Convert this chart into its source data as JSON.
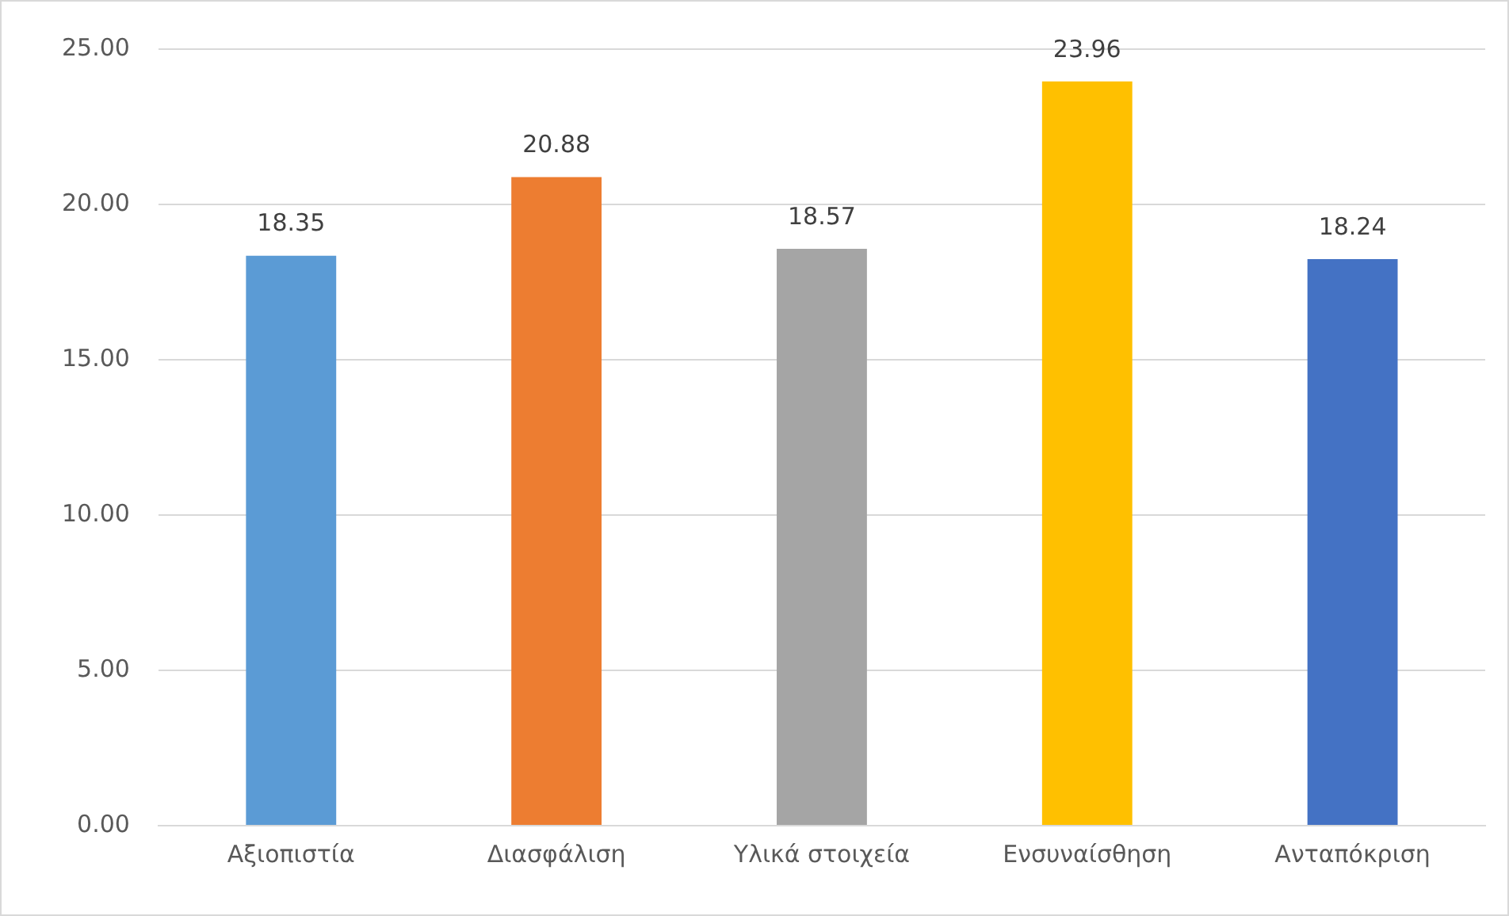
{
  "chart_data": {
    "type": "bar",
    "categories": [
      "Αξιοπιστία",
      "Διασφάλιση",
      "Υλικά στοιχεία",
      "Ενσυναίσθηση",
      "Ανταπόκριση"
    ],
    "values": [
      18.35,
      20.88,
      18.57,
      23.96,
      18.24
    ],
    "colors": [
      "#5b9bd5",
      "#ed7d31",
      "#a5a5a5",
      "#ffc000",
      "#4472c4"
    ],
    "ylim": [
      0,
      25
    ],
    "yticks": [
      {
        "value": 0,
        "label": "0.00"
      },
      {
        "value": 5,
        "label": "5.00"
      },
      {
        "value": 10,
        "label": "10.00"
      },
      {
        "value": 15,
        "label": "15.00"
      },
      {
        "value": 20,
        "label": "20.00"
      },
      {
        "value": 25,
        "label": "25.00"
      }
    ],
    "grid": "y",
    "data_labels": true,
    "legend": false
  }
}
